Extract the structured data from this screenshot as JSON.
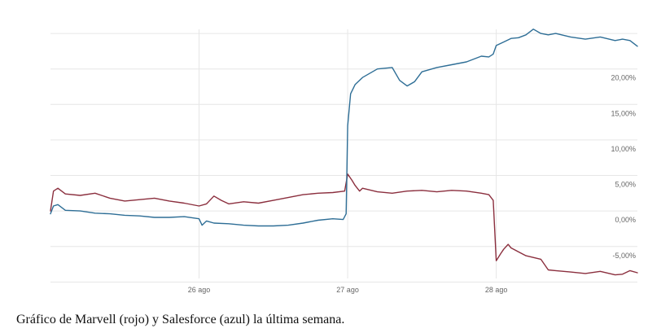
{
  "caption": "Gráfico de Marvell (rojo) y Salesforce (azul) la última semana.",
  "chart_data": {
    "type": "line",
    "title": "",
    "xlabel": "",
    "ylabel": "",
    "x_ticks": [
      {
        "label": "26 ago",
        "x": 1
      },
      {
        "label": "27 ago",
        "x": 2
      },
      {
        "label": "28 ago",
        "x": 3
      }
    ],
    "xlim": [
      0,
      3.95
    ],
    "y_ticks": [
      {
        "label": "20,00%",
        "y": 20
      },
      {
        "label": "15,00%",
        "y": 15
      },
      {
        "label": "10,00%",
        "y": 10
      },
      {
        "label": "5,00%",
        "y": 5
      },
      {
        "label": "0,00%",
        "y": 0
      },
      {
        "label": "-5,00%",
        "y": -5
      }
    ],
    "ylim": [
      -9.5,
      26.5
    ],
    "grid": true,
    "series": [
      {
        "color": "#8b2f3e",
        "points": [
          [
            0.0,
            0.0
          ],
          [
            0.02,
            2.8
          ],
          [
            0.05,
            3.2
          ],
          [
            0.1,
            2.4
          ],
          [
            0.2,
            2.2
          ],
          [
            0.3,
            2.5
          ],
          [
            0.4,
            1.8
          ],
          [
            0.5,
            1.4
          ],
          [
            0.6,
            1.6
          ],
          [
            0.7,
            1.8
          ],
          [
            0.8,
            1.4
          ],
          [
            0.9,
            1.1
          ],
          [
            1.0,
            0.7
          ],
          [
            1.05,
            1.0
          ],
          [
            1.1,
            2.1
          ],
          [
            1.15,
            1.5
          ],
          [
            1.2,
            1.0
          ],
          [
            1.3,
            1.3
          ],
          [
            1.4,
            1.1
          ],
          [
            1.5,
            1.5
          ],
          [
            1.6,
            1.9
          ],
          [
            1.7,
            2.3
          ],
          [
            1.8,
            2.5
          ],
          [
            1.9,
            2.6
          ],
          [
            1.98,
            2.8
          ],
          [
            2.0,
            5.2
          ],
          [
            2.03,
            4.3
          ],
          [
            2.05,
            3.6
          ],
          [
            2.08,
            2.8
          ],
          [
            2.1,
            3.2
          ],
          [
            2.2,
            2.7
          ],
          [
            2.3,
            2.5
          ],
          [
            2.4,
            2.8
          ],
          [
            2.5,
            2.9
          ],
          [
            2.6,
            2.7
          ],
          [
            2.7,
            2.9
          ],
          [
            2.8,
            2.8
          ],
          [
            2.9,
            2.5
          ],
          [
            2.95,
            2.3
          ],
          [
            2.98,
            1.5
          ],
          [
            3.0,
            -7.0
          ],
          [
            3.03,
            -6.0
          ],
          [
            3.05,
            -5.4
          ],
          [
            3.08,
            -4.7
          ],
          [
            3.1,
            -5.2
          ],
          [
            3.2,
            -6.3
          ],
          [
            3.3,
            -6.8
          ],
          [
            3.35,
            -8.3
          ],
          [
            3.4,
            -8.4
          ],
          [
            3.5,
            -8.6
          ],
          [
            3.6,
            -8.8
          ],
          [
            3.7,
            -8.5
          ],
          [
            3.8,
            -9.0
          ],
          [
            3.85,
            -8.9
          ],
          [
            3.9,
            -8.4
          ],
          [
            3.95,
            -8.7
          ]
        ]
      },
      {
        "color": "#2e6e96",
        "points": [
          [
            0.0,
            -0.4
          ],
          [
            0.02,
            0.7
          ],
          [
            0.05,
            0.9
          ],
          [
            0.1,
            0.1
          ],
          [
            0.2,
            0.0
          ],
          [
            0.3,
            -0.3
          ],
          [
            0.4,
            -0.4
          ],
          [
            0.5,
            -0.6
          ],
          [
            0.6,
            -0.7
          ],
          [
            0.7,
            -0.9
          ],
          [
            0.8,
            -0.9
          ],
          [
            0.9,
            -0.8
          ],
          [
            1.0,
            -1.1
          ],
          [
            1.02,
            -2.0
          ],
          [
            1.05,
            -1.4
          ],
          [
            1.1,
            -1.7
          ],
          [
            1.2,
            -1.8
          ],
          [
            1.3,
            -2.0
          ],
          [
            1.4,
            -2.1
          ],
          [
            1.5,
            -2.1
          ],
          [
            1.6,
            -2.0
          ],
          [
            1.7,
            -1.7
          ],
          [
            1.8,
            -1.3
          ],
          [
            1.9,
            -1.1
          ],
          [
            1.97,
            -1.2
          ],
          [
            1.99,
            -0.4
          ],
          [
            2.0,
            12.0
          ],
          [
            2.02,
            16.5
          ],
          [
            2.05,
            17.8
          ],
          [
            2.1,
            18.8
          ],
          [
            2.2,
            20.0
          ],
          [
            2.3,
            20.2
          ],
          [
            2.35,
            18.4
          ],
          [
            2.4,
            17.6
          ],
          [
            2.45,
            18.2
          ],
          [
            2.5,
            19.6
          ],
          [
            2.6,
            20.2
          ],
          [
            2.7,
            20.6
          ],
          [
            2.8,
            21.0
          ],
          [
            2.9,
            21.8
          ],
          [
            2.95,
            21.7
          ],
          [
            2.98,
            22.1
          ],
          [
            3.0,
            23.3
          ],
          [
            3.05,
            23.8
          ],
          [
            3.1,
            24.3
          ],
          [
            3.15,
            24.4
          ],
          [
            3.2,
            24.8
          ],
          [
            3.25,
            25.6
          ],
          [
            3.3,
            25.0
          ],
          [
            3.35,
            24.8
          ],
          [
            3.4,
            25.0
          ],
          [
            3.5,
            24.5
          ],
          [
            3.6,
            24.2
          ],
          [
            3.7,
            24.5
          ],
          [
            3.8,
            24.0
          ],
          [
            3.85,
            24.2
          ],
          [
            3.9,
            24.0
          ],
          [
            3.95,
            23.2
          ]
        ]
      }
    ]
  }
}
